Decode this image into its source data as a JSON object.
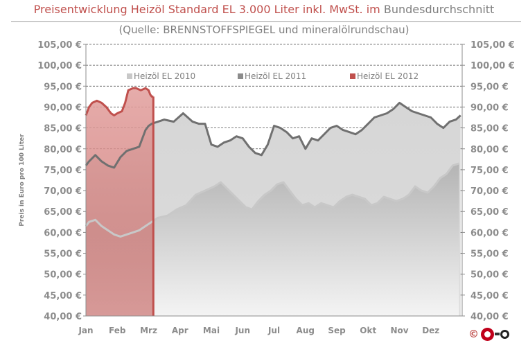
{
  "title_part1": "Preisentwicklung Heizöl Standard EL 3.000 Liter inkl. MwSt. im",
  "title_part2": "Bundesdurchschnitt",
  "subtitle": "(Quelle: BRENNSTOFFSPIEGEL  und mineralölrundschau)",
  "logo_copyright": "©",
  "colors": {
    "series_2010": "#c8c8c8",
    "series_2011": "#8c8c8c",
    "series_2012": "#c0504d",
    "title_red": "#c0504d",
    "axis_text": "#8c8c8c"
  },
  "chart_data": {
    "type": "area",
    "title": "Preisentwicklung Heizöl Standard EL 3.000 Liter inkl. MwSt. im Bundesdurchschnitt",
    "subtitle": "(Quelle: BRENNSTOFFSPIEGEL  und mineralölrundschau)",
    "ylabel": "Preis in Euro pro 100 Liter",
    "xlabel": "",
    "ylim": [
      40,
      105
    ],
    "y_ticks": [
      "40,00 €",
      "45,00 €",
      "50,00 €",
      "55,00 €",
      "60,00 €",
      "65,00 €",
      "70,00 €",
      "75,00 €",
      "80,00 €",
      "85,00 €",
      "90,00 €",
      "95,00 €",
      "100,00 €",
      "105,00 €"
    ],
    "categories": [
      "Jan",
      "Feb",
      "Mrz",
      "Apr",
      "Mai",
      "Jun",
      "Jul",
      "Aug",
      "Sep",
      "Okt",
      "Nov",
      "Dez"
    ],
    "grid": "horizontal dashed",
    "legend_position": "top-center",
    "series": [
      {
        "name": "Heizöl EL 2010",
        "x": [
          0,
          0.1,
          0.3,
          0.5,
          0.7,
          0.9,
          1.1,
          1.3,
          1.5,
          1.7,
          1.9,
          2.1,
          2.3,
          2.6,
          2.9,
          3.2,
          3.5,
          3.8,
          4.1,
          4.3,
          4.5,
          4.7,
          4.9,
          5.1,
          5.3,
          5.5,
          5.7,
          5.9,
          6.1,
          6.3,
          6.5,
          6.7,
          6.9,
          7.1,
          7.3,
          7.5,
          7.7,
          7.9,
          8.1,
          8.3,
          8.5,
          8.7,
          8.9,
          9.1,
          9.3,
          9.5,
          9.7,
          9.9,
          10.1,
          10.3,
          10.5,
          10.7,
          10.9,
          11.1,
          11.3,
          11.5,
          11.7,
          11.9
        ],
        "values": [
          61.5,
          62.5,
          63,
          61.5,
          60.5,
          59.5,
          59,
          59.5,
          60,
          60.5,
          61.5,
          62.5,
          63.5,
          64,
          65.5,
          66.5,
          69,
          70,
          71,
          72,
          70.5,
          69,
          67.5,
          66,
          65.5,
          67.5,
          69,
          70,
          71.5,
          72,
          70,
          68,
          66.5,
          67,
          66,
          67,
          66.5,
          66,
          67.5,
          68.5,
          69,
          68.5,
          68,
          66.5,
          67,
          68.5,
          68,
          67.5,
          68,
          69,
          71,
          70,
          69.5,
          71,
          73,
          74,
          76,
          76.5
        ]
      },
      {
        "name": "Heizöl EL 2011",
        "x": [
          0,
          0.1,
          0.3,
          0.5,
          0.7,
          0.9,
          1.1,
          1.3,
          1.5,
          1.7,
          1.9,
          2.0,
          2.1,
          2.3,
          2.5,
          2.8,
          3.1,
          3.4,
          3.6,
          3.8,
          4.0,
          4.2,
          4.4,
          4.6,
          4.8,
          5.0,
          5.2,
          5.4,
          5.6,
          5.8,
          6.0,
          6.2,
          6.4,
          6.6,
          6.8,
          7.0,
          7.2,
          7.4,
          7.6,
          7.8,
          8.0,
          8.2,
          8.4,
          8.6,
          8.8,
          9.0,
          9.2,
          9.4,
          9.6,
          9.8,
          10.0,
          10.2,
          10.4,
          10.6,
          10.8,
          11.0,
          11.2,
          11.4,
          11.6,
          11.8,
          11.95
        ],
        "values": [
          76,
          77,
          78.5,
          77,
          76,
          75.5,
          78,
          79.5,
          80,
          80.5,
          84.5,
          85.5,
          86,
          86.5,
          87,
          86.5,
          88.5,
          86.5,
          86,
          86,
          81,
          80.5,
          81.5,
          82,
          83,
          82.5,
          80.5,
          79,
          78.5,
          81,
          85.5,
          85,
          84,
          82.5,
          83,
          80,
          82.5,
          82,
          83.5,
          85,
          85.5,
          84.5,
          84,
          83.5,
          84.5,
          86,
          87.5,
          88,
          88.5,
          89.5,
          91,
          90,
          89,
          88.5,
          88,
          87.5,
          86,
          85,
          86.5,
          87,
          88
        ]
      },
      {
        "name": "Heizöl EL 2012",
        "x": [
          0,
          0.1,
          0.2,
          0.35,
          0.5,
          0.65,
          0.8,
          0.9,
          1.0,
          1.15,
          1.25,
          1.35,
          1.5,
          1.6,
          1.75,
          1.9,
          2.0,
          2.05,
          2.1,
          2.15
        ],
        "values": [
          88,
          90,
          91,
          91.5,
          91,
          90,
          88.5,
          88,
          88.5,
          89,
          91,
          94,
          94.5,
          94.5,
          94,
          94.5,
          94,
          93,
          92.5,
          92.5
        ]
      }
    ]
  }
}
